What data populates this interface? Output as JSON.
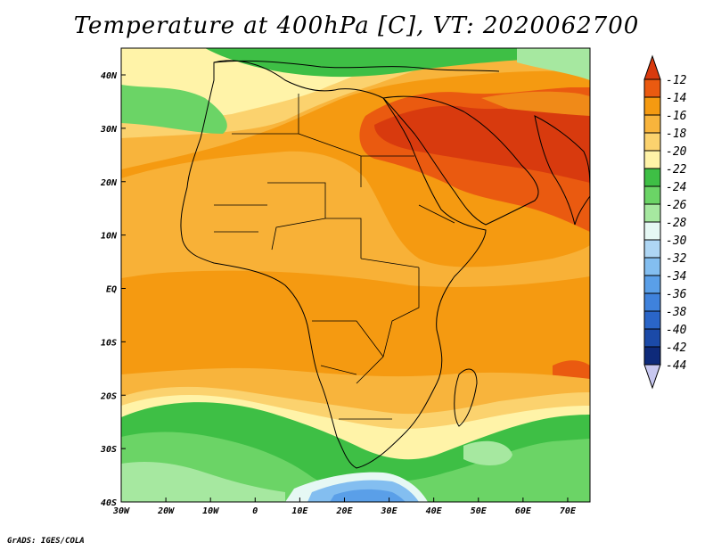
{
  "title": "Temperature at 400hPa [C], VT: 2020062700",
  "footer": "GrADS: IGES/COLA",
  "map": {
    "lon_ticks": [
      "30W",
      "20W",
      "10W",
      "0",
      "10E",
      "20E",
      "30E",
      "40E",
      "50E",
      "60E",
      "70E"
    ],
    "lat_ticks": [
      "40N",
      "30N",
      "20N",
      "10N",
      "EQ",
      "10S",
      "20S",
      "30S",
      "40S"
    ]
  },
  "colorbar": {
    "labels": [
      "-12",
      "-14",
      "-16",
      "-18",
      "-20",
      "-22",
      "-24",
      "-26",
      "-28",
      "-30",
      "-32",
      "-34",
      "-36",
      "-38",
      "-40",
      "-42",
      "-44"
    ],
    "colors": [
      "#d83a0e",
      "#ea5a10",
      "#f59a11",
      "#f8b43c",
      "#fbd26e",
      "#fff3a8",
      "#3ebf45",
      "#6bd466",
      "#a6e8a0",
      "#e6f8f4",
      "#aed6f4",
      "#83bef0",
      "#5a9fe8",
      "#3f82dc",
      "#2a65c8",
      "#1b4aa8",
      "#0e2a7a"
    ],
    "top_arrow_color": "#d83a0e",
    "bottom_arrow_color": "#c8c8f0"
  }
}
